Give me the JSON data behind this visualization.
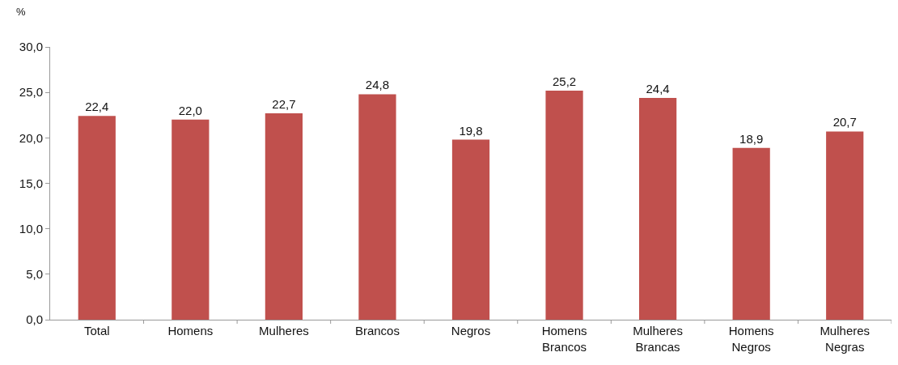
{
  "chart_data": {
    "type": "bar",
    "ylabel": "%",
    "categories": [
      "Total",
      "Homens",
      "Mulheres",
      "Brancos",
      "Negros",
      "Homens Brancos",
      "Mulheres Brancas",
      "Homens Negros",
      "Mulheres Negras"
    ],
    "values": [
      22.4,
      22.0,
      22.7,
      24.8,
      19.8,
      25.2,
      24.4,
      18.9,
      20.7
    ],
    "value_labels": [
      "22,4",
      "22,0",
      "22,7",
      "24,8",
      "19,8",
      "25,2",
      "24,4",
      "18,9",
      "20,7"
    ],
    "color": "#c0504d",
    "ylim": [
      0,
      30
    ],
    "yticks": [
      {
        "value": 0,
        "label": "0,0"
      },
      {
        "value": 5,
        "label": "5,0"
      },
      {
        "value": 10,
        "label": "10,0"
      },
      {
        "value": 15,
        "label": "15,0"
      },
      {
        "value": 20,
        "label": "20,0"
      },
      {
        "value": 25,
        "label": "25,0"
      },
      {
        "value": 30,
        "label": "30,0"
      }
    ],
    "grid": false,
    "legend": false
  }
}
